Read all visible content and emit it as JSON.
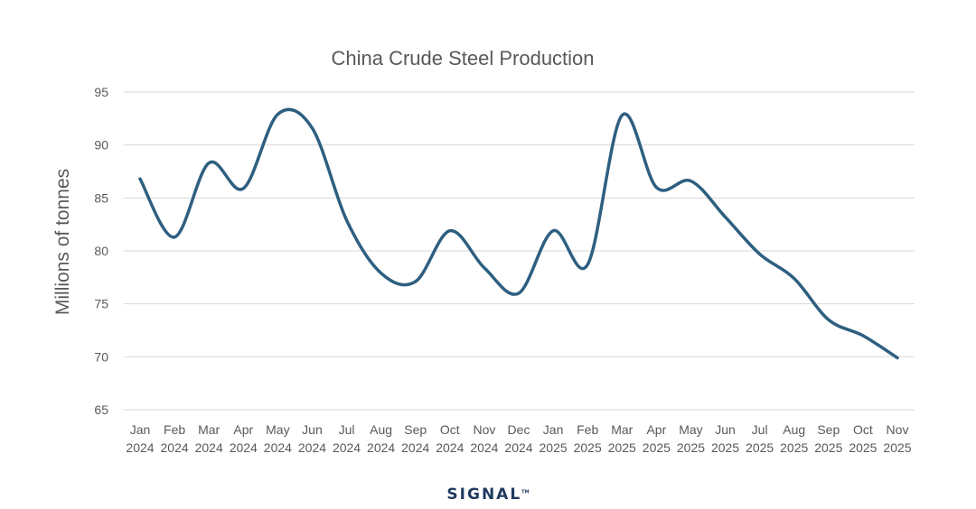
{
  "chart_data": {
    "type": "line",
    "title": "China Crude Steel Production",
    "xlabel": "",
    "ylabel": "Millions of tonnes",
    "ylim": [
      65,
      95
    ],
    "yticks": [
      65,
      70,
      75,
      80,
      85,
      90,
      95
    ],
    "grid": true,
    "smooth": true,
    "categories": [
      [
        "Jan",
        "2024"
      ],
      [
        "Feb",
        "2024"
      ],
      [
        "Mar",
        "2024"
      ],
      [
        "Apr",
        "2024"
      ],
      [
        "May",
        "2024"
      ],
      [
        "Jun",
        "2024"
      ],
      [
        "Jul",
        "2024"
      ],
      [
        "Aug",
        "2024"
      ],
      [
        "Sep",
        "2024"
      ],
      [
        "Oct",
        "2024"
      ],
      [
        "Nov",
        "2024"
      ],
      [
        "Dec",
        "2024"
      ],
      [
        "Jan",
        "2025"
      ],
      [
        "Feb",
        "2025"
      ],
      [
        "Mar",
        "2025"
      ],
      [
        "Apr",
        "2025"
      ],
      [
        "May",
        "2025"
      ],
      [
        "Jun",
        "2025"
      ],
      [
        "Jul",
        "2025"
      ],
      [
        "Aug",
        "2025"
      ],
      [
        "Sep",
        "2025"
      ],
      [
        "Oct",
        "2025"
      ],
      [
        "Nov",
        "2025"
      ]
    ],
    "series": [
      {
        "name": "Crude steel production",
        "color": "#2e5f80",
        "values": [
          86.8,
          81.3,
          88.3,
          85.9,
          92.9,
          91.6,
          82.9,
          77.9,
          77.1,
          81.9,
          78.4,
          76.0,
          81.9,
          78.7,
          92.8,
          86.0,
          86.6,
          83.2,
          79.7,
          77.4,
          73.5,
          72.0,
          69.9
        ]
      }
    ]
  },
  "logo": {
    "text": "SIGNAL",
    "mark": "TM"
  }
}
